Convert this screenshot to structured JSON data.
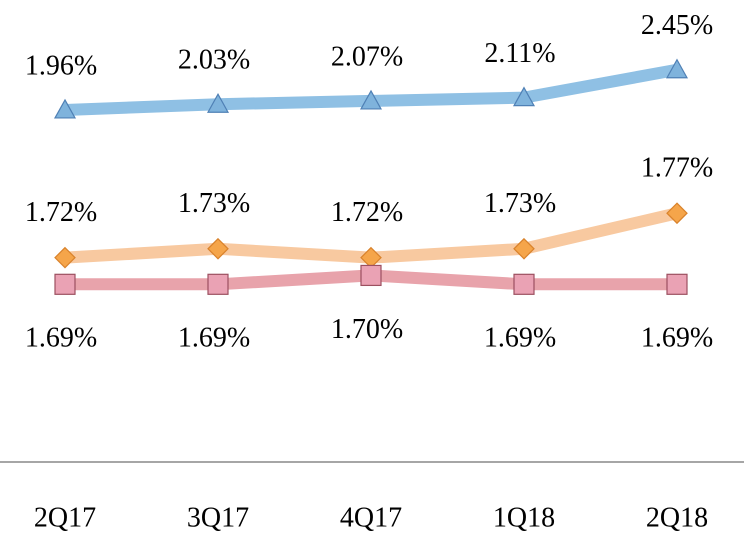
{
  "chart_data": {
    "type": "line",
    "categories": [
      "2Q17",
      "3Q17",
      "4Q17",
      "1Q18",
      "2Q18"
    ],
    "series": [
      {
        "color": "#8fc0e4",
        "marker": "triangle",
        "axis": "y2",
        "values": [
          1.96,
          2.03,
          2.07,
          2.11,
          2.45
        ],
        "value_labels": [
          "1.96%",
          "2.03%",
          "2.07%",
          "2.11%",
          "2.45%"
        ]
      },
      {
        "color": "#f8c9a0",
        "marker": "diamond",
        "values": [
          1.72,
          1.73,
          1.72,
          1.73,
          1.77
        ],
        "value_labels": [
          "1.72%",
          "1.73%",
          "1.72%",
          "1.73%",
          "1.77%"
        ]
      },
      {
        "color": "#e8a3ab",
        "marker": "square",
        "values": [
          1.69,
          1.69,
          1.7,
          1.69,
          1.69
        ],
        "value_labels": [
          "1.69%",
          "1.69%",
          "1.70%",
          "1.69%",
          "1.69%"
        ]
      }
    ],
    "ylim": [
      1.49,
      2.01
    ],
    "y2lim": [
      -2.33,
      3.3
    ]
  }
}
